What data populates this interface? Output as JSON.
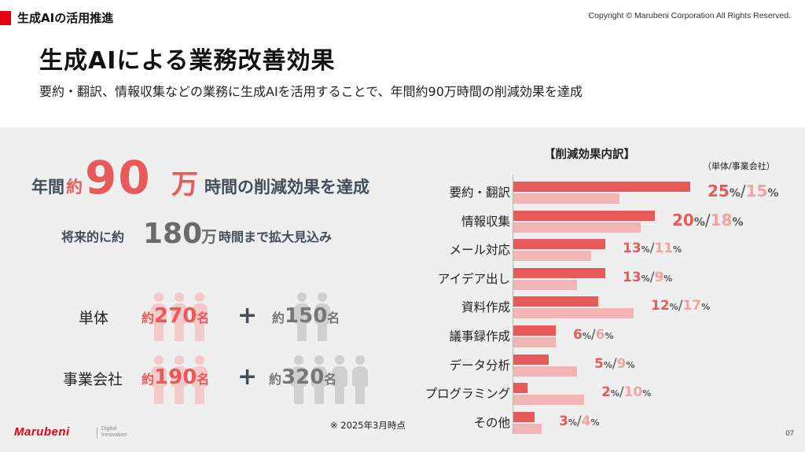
{
  "header": {
    "section": "生成AIの活用推進",
    "copyright": "Copyright © Marubeni Corporation All Rights Reserved."
  },
  "title": "生成AIによる業務改善効果",
  "subtitle": "要約・翻訳、情報収集などの業務に生成AIを活用することで、年間約90万時間の削減効果を達成",
  "headline": {
    "a": "年間",
    "b": "約",
    "big": "90",
    "man": "万",
    "rest": "時間の削減効果を達成"
  },
  "subline": {
    "a": "将来的に約",
    "big": "180",
    "man": "万",
    "rest": "時間まで拡大見込み"
  },
  "people_rows": [
    {
      "label": "単体",
      "left": {
        "pre": "約",
        "num": "270",
        "suf": "名"
      },
      "plus": "+",
      "right": {
        "pre": "約",
        "num": "150",
        "suf": "名"
      }
    },
    {
      "label": "事業会社",
      "left": {
        "pre": "約",
        "num": "190",
        "suf": "名"
      },
      "plus": "+",
      "right": {
        "pre": "約",
        "num": "320",
        "suf": "名"
      }
    }
  ],
  "note": "※ 2025年3月時点",
  "footer": {
    "logo": "Marubeni",
    "sub1": "Digital",
    "sub2": "Innovation",
    "page": "07"
  },
  "chart_data": {
    "type": "bar",
    "title": "【削減効果内訳】",
    "unit_label": "（単体/事業会社）",
    "categories": [
      "要約・翻訳",
      "情報収集",
      "メール対応",
      "アイデア出し",
      "資料作成",
      "議事録作成",
      "データ分析",
      "プログラミング",
      "その他"
    ],
    "series": [
      {
        "name": "単体",
        "values": [
          25,
          20,
          13,
          13,
          12,
          6,
          5,
          2,
          3
        ],
        "color": "#e85a5a"
      },
      {
        "name": "事業会社",
        "values": [
          15,
          18,
          11,
          9,
          17,
          6,
          9,
          10,
          4
        ],
        "color": "#f2b4b4"
      }
    ],
    "value_suffix": "%",
    "separator": "/"
  }
}
